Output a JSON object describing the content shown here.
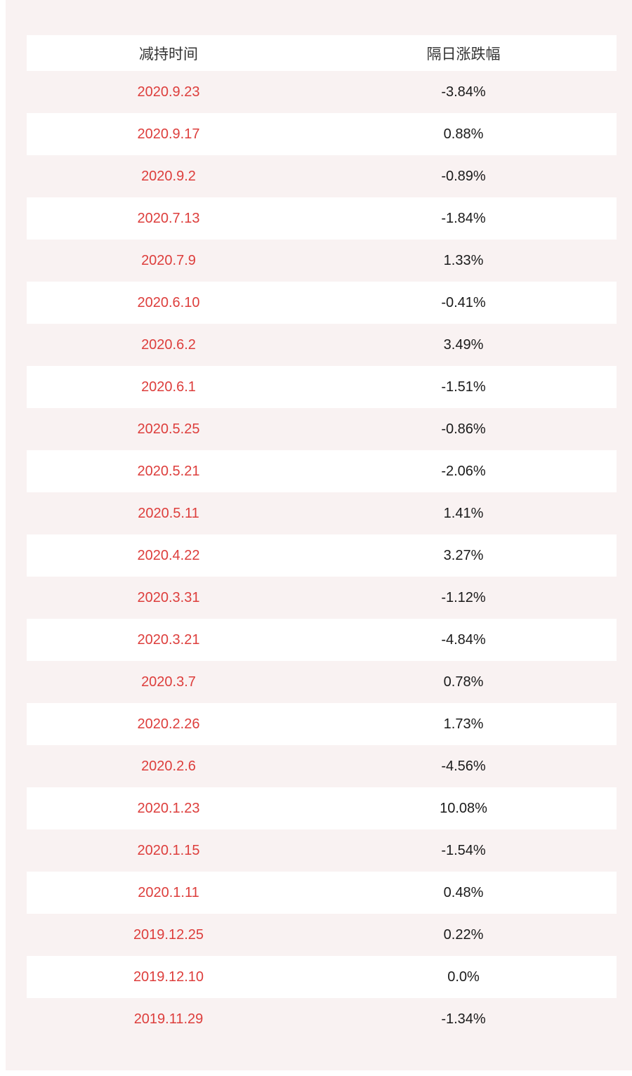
{
  "colors": {
    "page_bg": "#ffffff",
    "panel_bg": "#f9f2f2",
    "row_white": "#ffffff",
    "date_text": "#dd3e3c",
    "value_text": "#1a1a1a",
    "header_text": "#333333"
  },
  "table": {
    "headers": {
      "date": "减持时间",
      "change": "隔日涨跌幅"
    },
    "rows": [
      {
        "date": "2020.9.23",
        "change": "-3.84%"
      },
      {
        "date": "2020.9.17",
        "change": "0.88%"
      },
      {
        "date": "2020.9.2",
        "change": "-0.89%"
      },
      {
        "date": "2020.7.13",
        "change": "-1.84%"
      },
      {
        "date": "2020.7.9",
        "change": "1.33%"
      },
      {
        "date": "2020.6.10",
        "change": "-0.41%"
      },
      {
        "date": "2020.6.2",
        "change": "3.49%"
      },
      {
        "date": "2020.6.1",
        "change": "-1.51%"
      },
      {
        "date": "2020.5.25",
        "change": "-0.86%"
      },
      {
        "date": "2020.5.21",
        "change": "-2.06%"
      },
      {
        "date": "2020.5.11",
        "change": "1.41%"
      },
      {
        "date": "2020.4.22",
        "change": "3.27%"
      },
      {
        "date": "2020.3.31",
        "change": "-1.12%"
      },
      {
        "date": "2020.3.21",
        "change": "-4.84%"
      },
      {
        "date": "2020.3.7",
        "change": "0.78%"
      },
      {
        "date": "2020.2.26",
        "change": "1.73%"
      },
      {
        "date": "2020.2.6",
        "change": "-4.56%"
      },
      {
        "date": "2020.1.23",
        "change": "10.08%"
      },
      {
        "date": "2020.1.15",
        "change": "-1.54%"
      },
      {
        "date": "2020.1.11",
        "change": "0.48%"
      },
      {
        "date": "2019.12.25",
        "change": "0.22%"
      },
      {
        "date": "2019.12.10",
        "change": "0.0%"
      },
      {
        "date": "2019.11.29",
        "change": "-1.34%"
      }
    ]
  },
  "chart_data": {
    "type": "table",
    "columns": [
      "减持时间",
      "隔日涨跌幅"
    ],
    "rows": [
      [
        "2020.9.23",
        "-3.84%"
      ],
      [
        "2020.9.17",
        "0.88%"
      ],
      [
        "2020.9.2",
        "-0.89%"
      ],
      [
        "2020.7.13",
        "-1.84%"
      ],
      [
        "2020.7.9",
        "1.33%"
      ],
      [
        "2020.6.10",
        "-0.41%"
      ],
      [
        "2020.6.2",
        "3.49%"
      ],
      [
        "2020.6.1",
        "-1.51%"
      ],
      [
        "2020.5.25",
        "-0.86%"
      ],
      [
        "2020.5.21",
        "-2.06%"
      ],
      [
        "2020.5.11",
        "1.41%"
      ],
      [
        "2020.4.22",
        "3.27%"
      ],
      [
        "2020.3.31",
        "-1.12%"
      ],
      [
        "2020.3.21",
        "-4.84%"
      ],
      [
        "2020.3.7",
        "0.78%"
      ],
      [
        "2020.2.26",
        "1.73%"
      ],
      [
        "2020.2.6",
        "-4.56%"
      ],
      [
        "2020.1.23",
        "10.08%"
      ],
      [
        "2020.1.15",
        "-1.54%"
      ],
      [
        "2020.1.11",
        "0.48%"
      ],
      [
        "2019.12.25",
        "0.22%"
      ],
      [
        "2019.12.10",
        "0.0%"
      ],
      [
        "2019.11.29",
        "-1.34%"
      ]
    ],
    "values_numeric_pct": [
      -3.84,
      0.88,
      -0.89,
      -1.84,
      1.33,
      -0.41,
      3.49,
      -1.51,
      -0.86,
      -2.06,
      1.41,
      3.27,
      -1.12,
      -4.84,
      0.78,
      1.73,
      -4.56,
      10.08,
      -1.54,
      0.48,
      0.22,
      0.0,
      -1.34
    ],
    "layout": {
      "row_striping": [
        "panel_pink",
        "white"
      ],
      "text_align": "center"
    }
  }
}
